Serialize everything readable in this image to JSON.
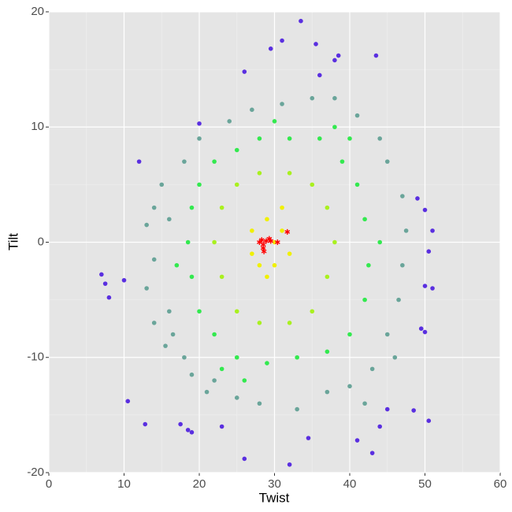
{
  "chart_data": {
    "type": "scatter",
    "x_label": "Twist",
    "y_label": "Tilt",
    "xlim": [
      0,
      60
    ],
    "xticks": [
      0,
      10,
      20,
      30,
      40,
      50,
      60
    ],
    "ylim": [
      -20,
      20
    ],
    "yticks": [
      -20,
      -10,
      0,
      10,
      20
    ],
    "grid": true,
    "series": [
      {
        "color": "#5a2fe0",
        "marker": "circle",
        "x": [
          33.5,
          31,
          29.5,
          35.5,
          38.5,
          43.5,
          38,
          36,
          26,
          10.5,
          12.8,
          17.5,
          18.5,
          19,
          23,
          26,
          32,
          34.5,
          41,
          43,
          48.5,
          50.5,
          7,
          7.5,
          8,
          10,
          51,
          50.5,
          51,
          50,
          49,
          20,
          12,
          50,
          49.5,
          50,
          44,
          45
        ],
        "y": [
          19.2,
          17.5,
          16.8,
          17.2,
          16.2,
          16.2,
          15.8,
          14.5,
          14.8,
          -13.8,
          -15.8,
          -15.8,
          -16.3,
          -16.5,
          -16,
          -18.8,
          -19.3,
          -17,
          -17.2,
          -18.3,
          -14.6,
          -15.5,
          -2.8,
          -3.6,
          -4.8,
          -3.3,
          1,
          -0.8,
          -4,
          2.8,
          3.8,
          10.3,
          7,
          -3.8,
          -7.5,
          -7.8,
          -16,
          -14.5
        ]
      },
      {
        "color": "#6aa59a",
        "marker": "circle",
        "x": [
          13,
          14,
          14,
          15,
          16,
          16.5,
          15.5,
          18,
          19,
          22,
          25,
          28,
          33,
          37,
          40,
          43,
          45,
          46.5,
          47,
          47.5,
          47,
          45,
          44,
          41,
          38,
          35,
          31,
          27,
          24,
          20,
          18,
          13,
          14,
          46,
          42,
          21,
          16
        ],
        "y": [
          1.5,
          -1.5,
          3,
          5,
          -6,
          -8,
          -9,
          -10,
          -11.5,
          -12,
          -13.5,
          -14,
          -14.5,
          -13,
          -12.5,
          -11,
          -8,
          -5,
          -2,
          1,
          4,
          7,
          9,
          11,
          12.5,
          12.5,
          12,
          11.5,
          10.5,
          9,
          7,
          -4,
          -7,
          -10,
          -14,
          -13,
          2
        ]
      },
      {
        "color": "#33e94f",
        "marker": "circle",
        "x": [
          20,
          22,
          25,
          28,
          32,
          36,
          39,
          41,
          42,
          42.5,
          42,
          40,
          37,
          33,
          29,
          25,
          22,
          20,
          19,
          18.5,
          19,
          23,
          38,
          44,
          17,
          30,
          26,
          40
        ],
        "y": [
          5,
          7,
          8,
          9,
          9,
          9,
          7,
          5,
          2,
          -2,
          -5,
          -8,
          -9.5,
          -10,
          -10.5,
          -10,
          -8,
          -6,
          -3,
          0,
          3,
          -11,
          10,
          0,
          -2,
          10.5,
          -12,
          9
        ]
      },
      {
        "color": "#a9f01f",
        "marker": "circle",
        "x": [
          23,
          25,
          28,
          32,
          35,
          37,
          38,
          37,
          35,
          32,
          28,
          25,
          23,
          22
        ],
        "y": [
          3,
          5,
          6,
          6,
          5,
          3,
          0,
          -3,
          -6,
          -7,
          -7,
          -6,
          -3,
          0
        ]
      },
      {
        "color": "#f0f000",
        "marker": "circle",
        "x": [
          27,
          29,
          31,
          32,
          30,
          28,
          27,
          29,
          31,
          30
        ],
        "y": [
          1,
          2,
          1,
          -1,
          -2,
          -2,
          -1,
          -3,
          3,
          0
        ]
      },
      {
        "color": "#ff0000",
        "marker": "star",
        "x": [
          28.3,
          28.5,
          28.6,
          28.5,
          29.3,
          29.5,
          30.4,
          31.7,
          28,
          28.9
        ],
        "y": [
          0.2,
          -0.2,
          -0.8,
          -0.5,
          0.3,
          0.1,
          0,
          0.9,
          0,
          0.1
        ]
      }
    ]
  }
}
